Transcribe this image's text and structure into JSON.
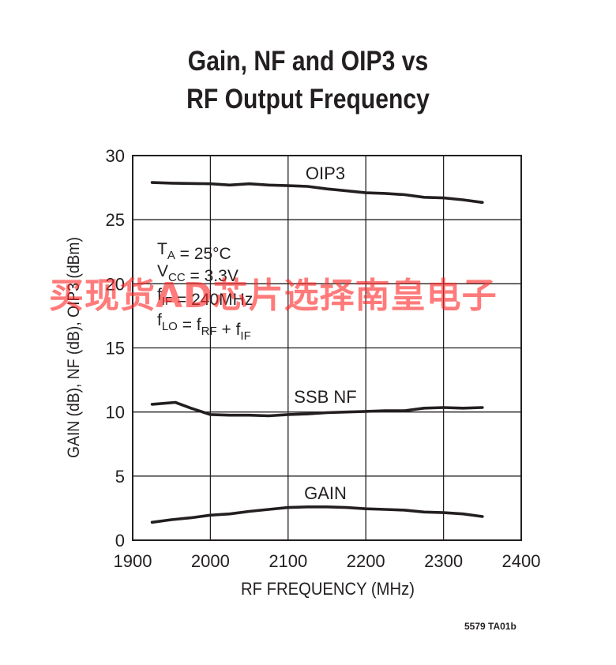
{
  "chart_data": {
    "type": "line",
    "title_lines": [
      "Gain, NF and OIP3 vs",
      "RF Output Frequency"
    ],
    "xlabel": "RF FREQUENCY (MHz)",
    "ylabel": "GAIN (dB), NF (dB), OIP3 (dBm)",
    "xlim": [
      1900,
      2400
    ],
    "ylim": [
      0,
      30
    ],
    "xticks": [
      1900,
      2000,
      2100,
      2200,
      2300,
      2400
    ],
    "yticks": [
      0,
      5,
      10,
      15,
      20,
      25,
      30
    ],
    "grid": true,
    "series": [
      {
        "name": "OIP3",
        "x": [
          1925,
          1950,
          2000,
          2025,
          2050,
          2075,
          2100,
          2125,
          2150,
          2175,
          2200,
          2225,
          2250,
          2275,
          2300,
          2325,
          2350
        ],
        "y": [
          27.9,
          27.85,
          27.8,
          27.7,
          27.8,
          27.7,
          27.65,
          27.6,
          27.4,
          27.25,
          27.1,
          27.05,
          26.95,
          26.75,
          26.7,
          26.55,
          26.35
        ]
      },
      {
        "name": "SSB NF",
        "x": [
          1925,
          1955,
          1975,
          2000,
          2025,
          2050,
          2075,
          2100,
          2125,
          2150,
          2175,
          2200,
          2225,
          2250,
          2275,
          2300,
          2325,
          2350
        ],
        "y": [
          10.6,
          10.75,
          10.3,
          9.8,
          9.75,
          9.75,
          9.7,
          9.8,
          9.85,
          9.95,
          10.0,
          10.05,
          10.1,
          10.1,
          10.3,
          10.35,
          10.3,
          10.35
        ]
      },
      {
        "name": "GAIN",
        "x": [
          1925,
          1950,
          1975,
          2000,
          2025,
          2050,
          2075,
          2100,
          2125,
          2150,
          2175,
          2200,
          2225,
          2250,
          2275,
          2300,
          2325,
          2350
        ],
        "y": [
          1.4,
          1.6,
          1.75,
          1.95,
          2.05,
          2.25,
          2.4,
          2.55,
          2.6,
          2.6,
          2.55,
          2.45,
          2.4,
          2.35,
          2.2,
          2.15,
          2.05,
          1.85
        ]
      }
    ],
    "conditions": [
      {
        "main": "T",
        "sub": "A",
        "rest": " = 25°C"
      },
      {
        "main": "V",
        "sub": "CC",
        "rest": " = 3.3V"
      },
      {
        "main": "f",
        "sub": "IF",
        "rest": " = 240MHz"
      },
      {
        "main": "f",
        "sub": "LO",
        "rest": " = f",
        "sub2": "RF",
        "rest2": " + f",
        "sub3": "IF"
      }
    ]
  },
  "watermark": "买现货AD芯片选择南皇电子",
  "figure_ref": "5579 TA01b",
  "colors": {
    "line": "#231f20",
    "watermark": "#ff2828"
  }
}
